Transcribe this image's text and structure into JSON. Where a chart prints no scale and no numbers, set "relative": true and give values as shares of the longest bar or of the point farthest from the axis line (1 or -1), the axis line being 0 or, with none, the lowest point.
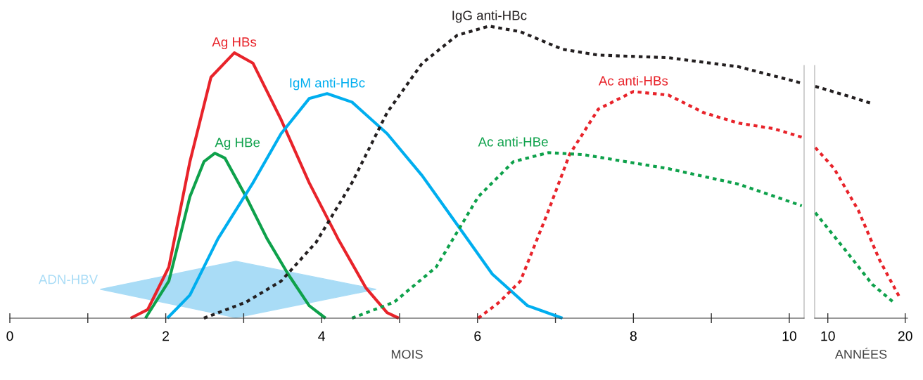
{
  "chart_data": [
    {
      "type": "line",
      "relative": true,
      "xlabel": "MOIS",
      "xlim": [
        0,
        10.19
      ],
      "xticks": [
        0,
        {
          "value": 1,
          "label": null
        },
        2,
        {
          "value": 3,
          "label": null
        },
        4,
        {
          "value": 5,
          "label": null
        },
        6,
        {
          "value": 7,
          "label": null
        },
        8,
        {
          "value": 9,
          "label": null
        },
        10
      ],
      "grid": false,
      "legend": false,
      "series": [
        {
          "name": "ADN-HBV",
          "type": "area",
          "color": "#a9dcf6",
          "x": [
            1.16,
            2.9,
            4.7,
            2.9,
            1.16
          ],
          "values": [
            0.099,
            0.195,
            0.099,
            0.002,
            0.099
          ]
        },
        {
          "name": "Ag HBs",
          "color": "#e8232a",
          "line_style": "solid",
          "x": [
            1.55,
            1.77,
            2.04,
            2.31,
            2.58,
            2.88,
            3.12,
            3.48,
            3.84,
            4.21,
            4.57,
            4.84,
            4.99
          ],
          "values": [
            0,
            0.03,
            0.175,
            0.536,
            0.825,
            0.909,
            0.873,
            0.68,
            0.464,
            0.272,
            0.103,
            0.019,
            0
          ]
        },
        {
          "name": "Ag HBe",
          "color": "#0ea14b",
          "line_style": "solid",
          "x": [
            1.74,
            2.04,
            2.31,
            2.49,
            2.63,
            2.76,
            3.03,
            3.3,
            3.57,
            3.84,
            4.05
          ],
          "values": [
            0,
            0.127,
            0.416,
            0.536,
            0.565,
            0.548,
            0.416,
            0.272,
            0.151,
            0.043,
            0
          ]
        },
        {
          "name": "IgM anti-HBc",
          "color": "#00aeef",
          "line_style": "solid",
          "x": [
            2.02,
            2.31,
            2.67,
            3.12,
            3.48,
            3.84,
            4.07,
            4.39,
            4.84,
            5.29,
            5.74,
            6.19,
            6.64,
            7.09
          ],
          "values": [
            0,
            0.079,
            0.272,
            0.464,
            0.632,
            0.752,
            0.769,
            0.74,
            0.632,
            0.488,
            0.32,
            0.151,
            0.043,
            0
          ]
        },
        {
          "name": "IgG anti-HBc",
          "color": "#231f20",
          "line_style": "dotted",
          "x": [
            2.49,
            3.03,
            3.48,
            3.93,
            4.39,
            4.84,
            5.29,
            5.74,
            6.15,
            6.55,
            7.09,
            7.55,
            8.45,
            9.35,
            10.16
          ],
          "values": [
            0,
            0.055,
            0.127,
            0.26,
            0.464,
            0.704,
            0.873,
            0.969,
            1.0,
            0.981,
            0.921,
            0.901,
            0.892,
            0.861,
            0.805
          ]
        },
        {
          "name": "Ac anti-HBs",
          "color": "#e8232a",
          "line_style": "dotted",
          "x": [
            6.01,
            6.28,
            6.55,
            6.91,
            7.18,
            7.55,
            8.0,
            8.45,
            8.9,
            9.35,
            9.8,
            10.16
          ],
          "values": [
            0,
            0.055,
            0.127,
            0.368,
            0.56,
            0.716,
            0.776,
            0.764,
            0.704,
            0.668,
            0.649,
            0.62
          ]
        },
        {
          "name": "Ac anti-HBe",
          "color": "#0ea14b",
          "line_style": "dotted",
          "x": [
            4.39,
            4.93,
            5.47,
            6.01,
            6.46,
            6.91,
            7.36,
            8.45,
            9.35,
            10.16
          ],
          "values": [
            0,
            0.055,
            0.175,
            0.416,
            0.536,
            0.567,
            0.56,
            0.512,
            0.459,
            0.385
          ]
        }
      ]
    },
    {
      "type": "line",
      "relative": true,
      "xlabel": "ANNÉES",
      "xlim": [
        8.3,
        20.3
      ],
      "xticks": [
        10,
        20
      ],
      "grid": false,
      "legend": false,
      "series": [
        {
          "color": "#231f20",
          "line_style": "dotted",
          "x": [
            8.38,
            12.16,
            15.5
          ],
          "values": [
            1.0,
            0.963,
            0.928
          ]
        },
        {
          "color": "#e8232a",
          "line_style": "dotted",
          "x": [
            8.38,
            10.81,
            13.96,
            16.67,
            19.37
          ],
          "values": [
            0.736,
            0.646,
            0.464,
            0.252,
            0.084
          ]
        },
        {
          "color": "#0ea14b",
          "line_style": "dotted",
          "x": [
            8.38,
            12.16,
            15.77,
            18.47
          ],
          "values": [
            0.455,
            0.298,
            0.145,
            0.069
          ]
        }
      ]
    }
  ]
}
